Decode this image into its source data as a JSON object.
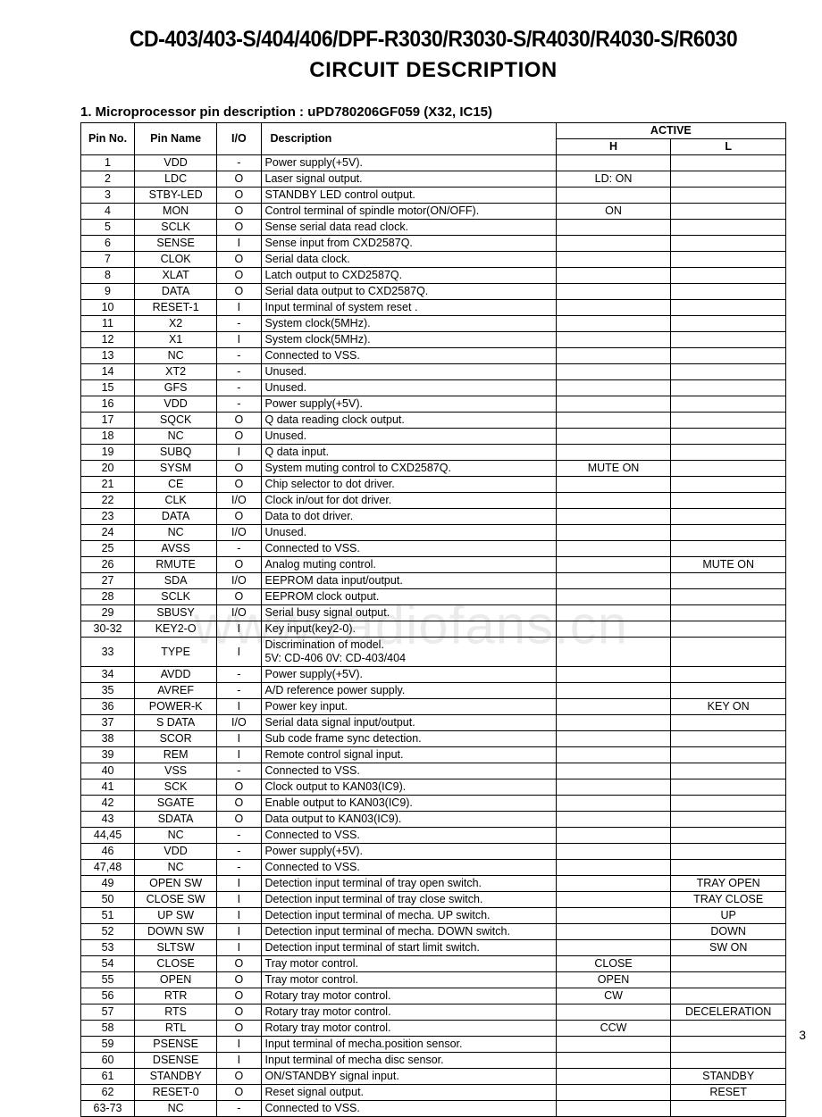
{
  "header": {
    "model_line": "CD-403/403-S/404/406/DPF-R3030/R3030-S/R4030/R4030-S/R6030",
    "title": "CIRCUIT DESCRIPTION"
  },
  "section_heading": "1. Microprocessor pin description : uPD780206GF059 (X32, IC15)",
  "watermark": "www.radiofans.cn",
  "page_number": "3",
  "table": {
    "columns": {
      "pin": "Pin No.",
      "name": "Pin Name",
      "io": "I/O",
      "desc": "Description",
      "active": "ACTIVE",
      "h": "H",
      "l": "L"
    },
    "rows": [
      {
        "pin": "1",
        "name": "VDD",
        "io": "-",
        "desc": "Power supply(+5V).",
        "h": "",
        "l": ""
      },
      {
        "pin": "2",
        "name": "LDC",
        "io": "O",
        "desc": "Laser signal output.",
        "h": "LD: ON",
        "l": ""
      },
      {
        "pin": "3",
        "name": "STBY-LED",
        "io": "O",
        "desc": "STANDBY LED control output.",
        "h": "",
        "l": ""
      },
      {
        "pin": "4",
        "name": "MON",
        "io": "O",
        "desc": "Control terminal of spindle motor(ON/OFF).",
        "h": "ON",
        "l": ""
      },
      {
        "pin": "5",
        "name": "SCLK",
        "io": "O",
        "desc": "Sense serial data read clock.",
        "h": "",
        "l": ""
      },
      {
        "pin": "6",
        "name": "SENSE",
        "io": "I",
        "desc": "Sense input from CXD2587Q.",
        "h": "",
        "l": ""
      },
      {
        "pin": "7",
        "name": "CLOK",
        "io": "O",
        "desc": "Serial data clock.",
        "h": "",
        "l": ""
      },
      {
        "pin": "8",
        "name": "XLAT",
        "io": "O",
        "desc": "Latch output to CXD2587Q.",
        "h": "",
        "l": ""
      },
      {
        "pin": "9",
        "name": "DATA",
        "io": "O",
        "desc": "Serial data output to CXD2587Q.",
        "h": "",
        "l": ""
      },
      {
        "pin": "10",
        "name": "RESET-1",
        "io": "I",
        "desc": "Input terminal of system reset .",
        "h": "",
        "l": ""
      },
      {
        "pin": "11",
        "name": "X2",
        "io": "-",
        "desc": "System clock(5MHz).",
        "h": "",
        "l": ""
      },
      {
        "pin": "12",
        "name": "X1",
        "io": "I",
        "desc": "System clock(5MHz).",
        "h": "",
        "l": ""
      },
      {
        "pin": "13",
        "name": "NC",
        "io": "-",
        "desc": "Connected to VSS.",
        "h": "",
        "l": ""
      },
      {
        "pin": "14",
        "name": "XT2",
        "io": "-",
        "desc": "Unused.",
        "h": "",
        "l": ""
      },
      {
        "pin": "15",
        "name": "GFS",
        "io": "-",
        "desc": "Unused.",
        "h": "",
        "l": ""
      },
      {
        "pin": "16",
        "name": "VDD",
        "io": "-",
        "desc": "Power supply(+5V).",
        "h": "",
        "l": ""
      },
      {
        "pin": "17",
        "name": "SQCK",
        "io": "O",
        "desc": "Q data reading clock output.",
        "h": "",
        "l": ""
      },
      {
        "pin": "18",
        "name": "NC",
        "io": "O",
        "desc": "Unused.",
        "h": "",
        "l": ""
      },
      {
        "pin": "19",
        "name": "SUBQ",
        "io": "I",
        "desc": "Q data input.",
        "h": "",
        "l": ""
      },
      {
        "pin": "20",
        "name": "SYSM",
        "io": "O",
        "desc": "System muting control to CXD2587Q.",
        "h": "MUTE ON",
        "l": ""
      },
      {
        "pin": "21",
        "name": "CE",
        "io": "O",
        "desc": "Chip selector to dot driver.",
        "h": "",
        "l": ""
      },
      {
        "pin": "22",
        "name": "CLK",
        "io": "I/O",
        "desc": "Clock in/out for dot driver.",
        "h": "",
        "l": ""
      },
      {
        "pin": "23",
        "name": "DATA",
        "io": "O",
        "desc": "Data to dot driver.",
        "h": "",
        "l": ""
      },
      {
        "pin": "24",
        "name": "NC",
        "io": "I/O",
        "desc": "Unused.",
        "h": "",
        "l": ""
      },
      {
        "pin": "25",
        "name": "AVSS",
        "io": "-",
        "desc": "Connected to VSS.",
        "h": "",
        "l": ""
      },
      {
        "pin": "26",
        "name": "RMUTE",
        "io": "O",
        "desc": "Analog muting control.",
        "h": "",
        "l": "MUTE ON"
      },
      {
        "pin": "27",
        "name": "SDA",
        "io": "I/O",
        "desc": "EEPROM data input/output.",
        "h": "",
        "l": ""
      },
      {
        "pin": "28",
        "name": "SCLK",
        "io": "O",
        "desc": "EEPROM clock output.",
        "h": "",
        "l": ""
      },
      {
        "pin": "29",
        "name": "SBUSY",
        "io": "I/O",
        "desc": "Serial busy signal output.",
        "h": "",
        "l": ""
      },
      {
        "pin": "30-32",
        "name": "KEY2-O",
        "io": "I",
        "desc": "Key input(key2-0).",
        "h": "",
        "l": ""
      },
      {
        "pin": "33",
        "name": "TYPE",
        "io": "I",
        "desc": "Discrimination of model.\n5V: CD-406   0V: CD-403/404",
        "h": "",
        "l": ""
      },
      {
        "pin": "34",
        "name": "AVDD",
        "io": "-",
        "desc": "Power supply(+5V).",
        "h": "",
        "l": ""
      },
      {
        "pin": "35",
        "name": "AVREF",
        "io": "-",
        "desc": "A/D reference power supply.",
        "h": "",
        "l": ""
      },
      {
        "pin": "36",
        "name": "POWER-K",
        "io": "I",
        "desc": "Power key input.",
        "h": "",
        "l": "KEY ON"
      },
      {
        "pin": "37",
        "name": "S DATA",
        "io": "I/O",
        "desc": "Serial data signal input/output.",
        "h": "",
        "l": ""
      },
      {
        "pin": "38",
        "name": "SCOR",
        "io": "I",
        "desc": "Sub code frame sync detection.",
        "h": "",
        "l": ""
      },
      {
        "pin": "39",
        "name": "REM",
        "io": "I",
        "desc": "Remote control signal input.",
        "h": "",
        "l": ""
      },
      {
        "pin": "40",
        "name": "VSS",
        "io": "-",
        "desc": "Connected to VSS.",
        "h": "",
        "l": ""
      },
      {
        "pin": "41",
        "name": "SCK",
        "io": "O",
        "desc": "Clock output to KAN03(IC9).",
        "h": "",
        "l": ""
      },
      {
        "pin": "42",
        "name": "SGATE",
        "io": "O",
        "desc": "Enable output to KAN03(IC9).",
        "h": "",
        "l": ""
      },
      {
        "pin": "43",
        "name": "SDATA",
        "io": "O",
        "desc": "Data output to KAN03(IC9).",
        "h": "",
        "l": ""
      },
      {
        "pin": "44,45",
        "name": "NC",
        "io": "-",
        "desc": "Connected to VSS.",
        "h": "",
        "l": ""
      },
      {
        "pin": "46",
        "name": "VDD",
        "io": "-",
        "desc": "Power supply(+5V).",
        "h": "",
        "l": ""
      },
      {
        "pin": "47,48",
        "name": "NC",
        "io": "-",
        "desc": "Connected to VSS.",
        "h": "",
        "l": ""
      },
      {
        "pin": "49",
        "name": "OPEN SW",
        "io": "I",
        "desc": "Detection input terminal of tray open switch.",
        "h": "",
        "l": "TRAY OPEN"
      },
      {
        "pin": "50",
        "name": "CLOSE SW",
        "io": "I",
        "desc": "Detection input terminal of tray close switch.",
        "h": "",
        "l": "TRAY  CLOSE"
      },
      {
        "pin": "51",
        "name": "UP SW",
        "io": "I",
        "desc": "Detection input terminal of mecha. UP switch.",
        "h": "",
        "l": "UP"
      },
      {
        "pin": "52",
        "name": "DOWN SW",
        "io": "I",
        "desc": "Detection input terminal of mecha. DOWN switch.",
        "h": "",
        "l": "DOWN"
      },
      {
        "pin": "53",
        "name": "SLTSW",
        "io": "I",
        "desc": "Detection input terminal of start limit switch.",
        "h": "",
        "l": "SW ON"
      },
      {
        "pin": "54",
        "name": "CLOSE",
        "io": "O",
        "desc": "Tray motor control.",
        "h": "CLOSE",
        "l": ""
      },
      {
        "pin": "55",
        "name": "OPEN",
        "io": "O",
        "desc": "Tray motor control.",
        "h": "OPEN",
        "l": ""
      },
      {
        "pin": "56",
        "name": "RTR",
        "io": "O",
        "desc": "Rotary tray motor control.",
        "h": "CW",
        "l": ""
      },
      {
        "pin": "57",
        "name": "RTS",
        "io": "O",
        "desc": "Rotary tray motor control.",
        "h": "",
        "l": "DECELERATION"
      },
      {
        "pin": "58",
        "name": "RTL",
        "io": "O",
        "desc": "Rotary tray motor control.",
        "h": "CCW",
        "l": ""
      },
      {
        "pin": "59",
        "name": "PSENSE",
        "io": "I",
        "desc": "Input terminal of mecha.position sensor.",
        "h": "",
        "l": ""
      },
      {
        "pin": "60",
        "name": "DSENSE",
        "io": "I",
        "desc": "Input terminal of mecha disc sensor.",
        "h": "",
        "l": ""
      },
      {
        "pin": "61",
        "name": "STANDBY",
        "io": "O",
        "desc": "ON/STANDBY signal input.",
        "h": "",
        "l": "STANDBY"
      },
      {
        "pin": "62",
        "name": "RESET-0",
        "io": "O",
        "desc": "Reset signal output.",
        "h": "",
        "l": "RESET"
      },
      {
        "pin": "63-73",
        "name": "NC",
        "io": "-",
        "desc": "Connected to VSS.",
        "h": "",
        "l": ""
      }
    ]
  }
}
